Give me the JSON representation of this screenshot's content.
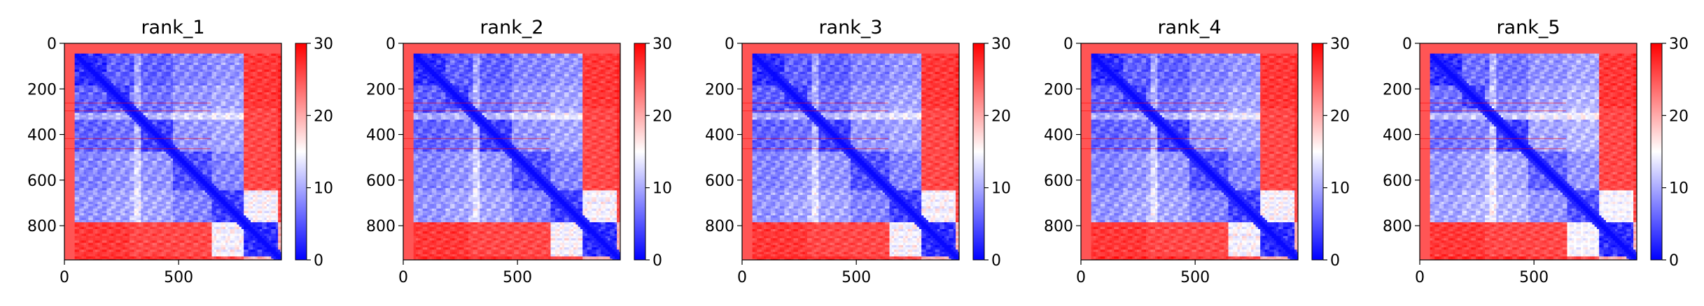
{
  "chart_data": [
    {
      "type": "heatmap",
      "title": "rank_1",
      "xlabel": "",
      "ylabel": "",
      "xlim": [
        0,
        950
      ],
      "ylim": [
        950,
        0
      ],
      "x_ticks": [
        0,
        500
      ],
      "y_ticks": [
        0,
        200,
        400,
        600,
        800
      ],
      "colorbar": {
        "range": [
          0,
          30
        ],
        "ticks": [
          0,
          10,
          20,
          30
        ],
        "colormap": [
          "#0000ff",
          "#ffffff",
          "#ff0000"
        ]
      },
      "grid": false,
      "structure": {
        "domain_boundaries": [
          45,
          180,
          280,
          300,
          330,
          470,
          640,
          780,
          930,
          950
        ],
        "block_values": [
          [
            2,
            5,
            4,
            9,
            5,
            7,
            8,
            27,
            28
          ],
          [
            5,
            3,
            6,
            10,
            6,
            8,
            9,
            27,
            28
          ],
          [
            4,
            6,
            4,
            8,
            6,
            9,
            10,
            26,
            28
          ],
          [
            9,
            10,
            8,
            16,
            10,
            12,
            13,
            26,
            27
          ],
          [
            5,
            6,
            6,
            10,
            3,
            8,
            9,
            26,
            28
          ],
          [
            7,
            8,
            9,
            12,
            8,
            4,
            7,
            26,
            27
          ],
          [
            8,
            9,
            10,
            13,
            9,
            7,
            3,
            14,
            26
          ],
          [
            27,
            27,
            26,
            26,
            26,
            26,
            14,
            2,
            20
          ],
          [
            28,
            28,
            28,
            27,
            28,
            27,
            26,
            20,
            2
          ]
        ]
      }
    },
    {
      "type": "heatmap",
      "title": "rank_2",
      "xlabel": "",
      "ylabel": "",
      "xlim": [
        0,
        950
      ],
      "ylim": [
        950,
        0
      ],
      "x_ticks": [
        0,
        500
      ],
      "y_ticks": [
        0,
        200,
        400,
        600,
        800
      ],
      "colorbar": {
        "range": [
          0,
          30
        ],
        "ticks": [
          0,
          10,
          20,
          30
        ],
        "colormap": [
          "#0000ff",
          "#ffffff",
          "#ff0000"
        ]
      },
      "grid": false,
      "structure": {
        "domain_boundaries": [
          45,
          180,
          280,
          300,
          330,
          470,
          640,
          780,
          930,
          950
        ],
        "block_values": [
          [
            2,
            5,
            4,
            9,
            5,
            7,
            8,
            27,
            28
          ],
          [
            5,
            3,
            6,
            10,
            6,
            8,
            9,
            27,
            28
          ],
          [
            4,
            6,
            4,
            8,
            6,
            9,
            10,
            26,
            28
          ],
          [
            9,
            10,
            8,
            16,
            10,
            12,
            13,
            26,
            27
          ],
          [
            5,
            6,
            6,
            10,
            3,
            8,
            9,
            26,
            28
          ],
          [
            7,
            8,
            9,
            12,
            8,
            4,
            7,
            26,
            27
          ],
          [
            8,
            9,
            10,
            13,
            9,
            7,
            3,
            14,
            26
          ],
          [
            27,
            27,
            26,
            26,
            26,
            26,
            14,
            2,
            20
          ],
          [
            28,
            28,
            28,
            27,
            28,
            27,
            26,
            20,
            2
          ]
        ]
      }
    },
    {
      "type": "heatmap",
      "title": "rank_3",
      "xlabel": "",
      "ylabel": "",
      "xlim": [
        0,
        950
      ],
      "ylim": [
        950,
        0
      ],
      "x_ticks": [
        0,
        500
      ],
      "y_ticks": [
        0,
        200,
        400,
        600,
        800
      ],
      "colorbar": {
        "range": [
          0,
          30
        ],
        "ticks": [
          0,
          10,
          20,
          30
        ],
        "colormap": [
          "#0000ff",
          "#ffffff",
          "#ff0000"
        ]
      },
      "grid": false,
      "structure": {
        "domain_boundaries": [
          45,
          180,
          280,
          300,
          330,
          470,
          640,
          780,
          930,
          950
        ],
        "block_values": [
          [
            2,
            5,
            4,
            9,
            5,
            7,
            8,
            27,
            28
          ],
          [
            5,
            3,
            6,
            10,
            6,
            8,
            9,
            27,
            28
          ],
          [
            4,
            6,
            4,
            8,
            6,
            9,
            10,
            26,
            28
          ],
          [
            9,
            10,
            8,
            16,
            10,
            12,
            13,
            26,
            27
          ],
          [
            5,
            6,
            6,
            10,
            3,
            8,
            9,
            26,
            28
          ],
          [
            7,
            8,
            9,
            12,
            8,
            4,
            7,
            26,
            27
          ],
          [
            8,
            9,
            10,
            13,
            9,
            7,
            3,
            14,
            26
          ],
          [
            27,
            27,
            26,
            26,
            26,
            26,
            14,
            2,
            20
          ],
          [
            28,
            28,
            28,
            27,
            28,
            27,
            26,
            20,
            2
          ]
        ]
      }
    },
    {
      "type": "heatmap",
      "title": "rank_4",
      "xlabel": "",
      "ylabel": "",
      "xlim": [
        0,
        950
      ],
      "ylim": [
        950,
        0
      ],
      "x_ticks": [
        0,
        500
      ],
      "y_ticks": [
        0,
        200,
        400,
        600,
        800
      ],
      "colorbar": {
        "range": [
          0,
          30
        ],
        "ticks": [
          0,
          10,
          20,
          30
        ],
        "colormap": [
          "#0000ff",
          "#ffffff",
          "#ff0000"
        ]
      },
      "grid": false,
      "structure": {
        "domain_boundaries": [
          45,
          180,
          280,
          300,
          330,
          470,
          640,
          780,
          930,
          950
        ],
        "block_values": [
          [
            2,
            5,
            4,
            9,
            5,
            7,
            8,
            27,
            28
          ],
          [
            5,
            3,
            6,
            10,
            6,
            8,
            9,
            27,
            28
          ],
          [
            4,
            6,
            4,
            8,
            6,
            9,
            10,
            26,
            28
          ],
          [
            9,
            10,
            8,
            16,
            10,
            12,
            13,
            26,
            27
          ],
          [
            5,
            6,
            6,
            10,
            3,
            8,
            9,
            26,
            28
          ],
          [
            7,
            8,
            9,
            12,
            8,
            4,
            7,
            26,
            27
          ],
          [
            8,
            9,
            10,
            13,
            9,
            7,
            3,
            14,
            26
          ],
          [
            27,
            27,
            26,
            26,
            26,
            26,
            14,
            2,
            20
          ],
          [
            28,
            28,
            28,
            27,
            28,
            27,
            26,
            20,
            2
          ]
        ]
      }
    },
    {
      "type": "heatmap",
      "title": "rank_5",
      "xlabel": "",
      "ylabel": "",
      "xlim": [
        0,
        950
      ],
      "ylim": [
        950,
        0
      ],
      "x_ticks": [
        0,
        500
      ],
      "y_ticks": [
        0,
        200,
        400,
        600,
        800
      ],
      "colorbar": {
        "range": [
          0,
          30
        ],
        "ticks": [
          0,
          10,
          20,
          30
        ],
        "colormap": [
          "#0000ff",
          "#ffffff",
          "#ff0000"
        ]
      },
      "grid": false,
      "structure": {
        "domain_boundaries": [
          45,
          180,
          280,
          300,
          330,
          470,
          640,
          780,
          930,
          950
        ],
        "block_values": [
          [
            2,
            6,
            5,
            10,
            6,
            8,
            9,
            27,
            28
          ],
          [
            6,
            3,
            7,
            11,
            7,
            9,
            10,
            27,
            28
          ],
          [
            5,
            7,
            4,
            9,
            7,
            10,
            11,
            26,
            28
          ],
          [
            10,
            11,
            9,
            18,
            11,
            13,
            14,
            26,
            27
          ],
          [
            6,
            7,
            7,
            11,
            3,
            9,
            10,
            26,
            28
          ],
          [
            8,
            9,
            10,
            13,
            9,
            5,
            8,
            26,
            27
          ],
          [
            9,
            10,
            11,
            14,
            10,
            8,
            4,
            15,
            26
          ],
          [
            27,
            27,
            26,
            26,
            26,
            26,
            15,
            2,
            20
          ],
          [
            28,
            28,
            28,
            27,
            28,
            27,
            26,
            20,
            2
          ]
        ]
      }
    }
  ]
}
